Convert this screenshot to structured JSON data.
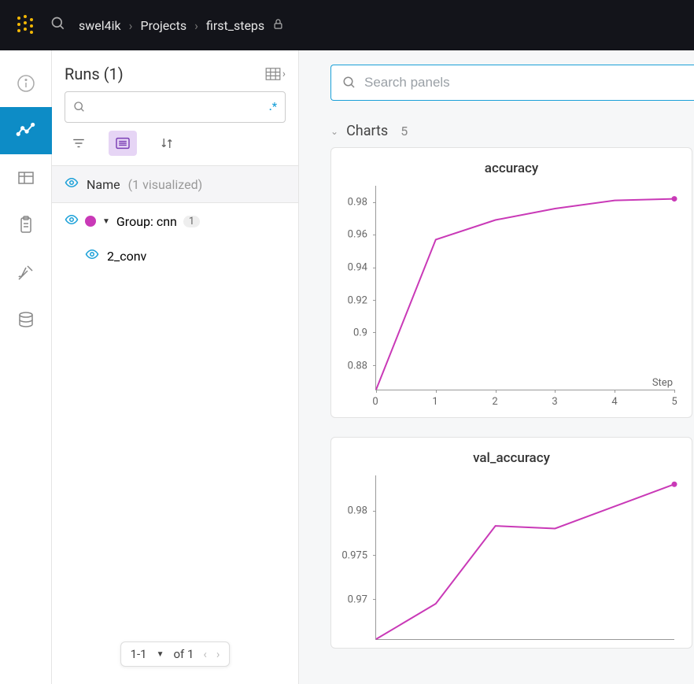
{
  "breadcrumb": {
    "user": "swel4ik",
    "middle": "Projects",
    "project": "first_steps"
  },
  "sidebar": {
    "title": "Runs (1)",
    "search_regex": ".*",
    "name_label": "Name",
    "name_muted": "(1 visualized)",
    "group_label": "Group: cnn",
    "group_count": "1",
    "group_color": "#c939b7",
    "run_name": "2_conv",
    "pager_text": "1-1",
    "pager_of": "of 1"
  },
  "panels": {
    "search_placeholder": "Search panels",
    "section_title": "Charts",
    "section_count": "5"
  },
  "charts": {
    "accuracy": {
      "title": "accuracy",
      "line_color": "#c939b7",
      "axis_label": "Step",
      "y_ticks": [
        0.88,
        0.9,
        0.92,
        0.94,
        0.96,
        0.98
      ],
      "y_tick_labels": [
        "0.88",
        "0.9",
        "0.92",
        "0.94",
        "0.96",
        "0.98"
      ],
      "ylim": [
        0.865,
        0.99
      ],
      "x_ticks": [
        0,
        1,
        2,
        3,
        4,
        5
      ],
      "xlim": [
        0,
        5
      ],
      "values_x": [
        0,
        1,
        2,
        3,
        4,
        5
      ],
      "values_y": [
        0.865,
        0.957,
        0.969,
        0.976,
        0.981,
        0.982
      ],
      "end_marker": true
    },
    "val_accuracy": {
      "title": "val_accuracy",
      "line_color": "#c939b7",
      "y_ticks": [
        0.97,
        0.975,
        0.98
      ],
      "y_tick_labels": [
        "0.97",
        "0.975",
        "0.98"
      ],
      "ylim": [
        0.9655,
        0.984
      ],
      "xlim": [
        0,
        5
      ],
      "values_x": [
        0,
        1,
        2,
        3,
        4,
        5
      ],
      "values_y": [
        0.9655,
        0.9695,
        0.9783,
        0.978,
        0.9805,
        0.983
      ],
      "end_marker": true
    }
  }
}
